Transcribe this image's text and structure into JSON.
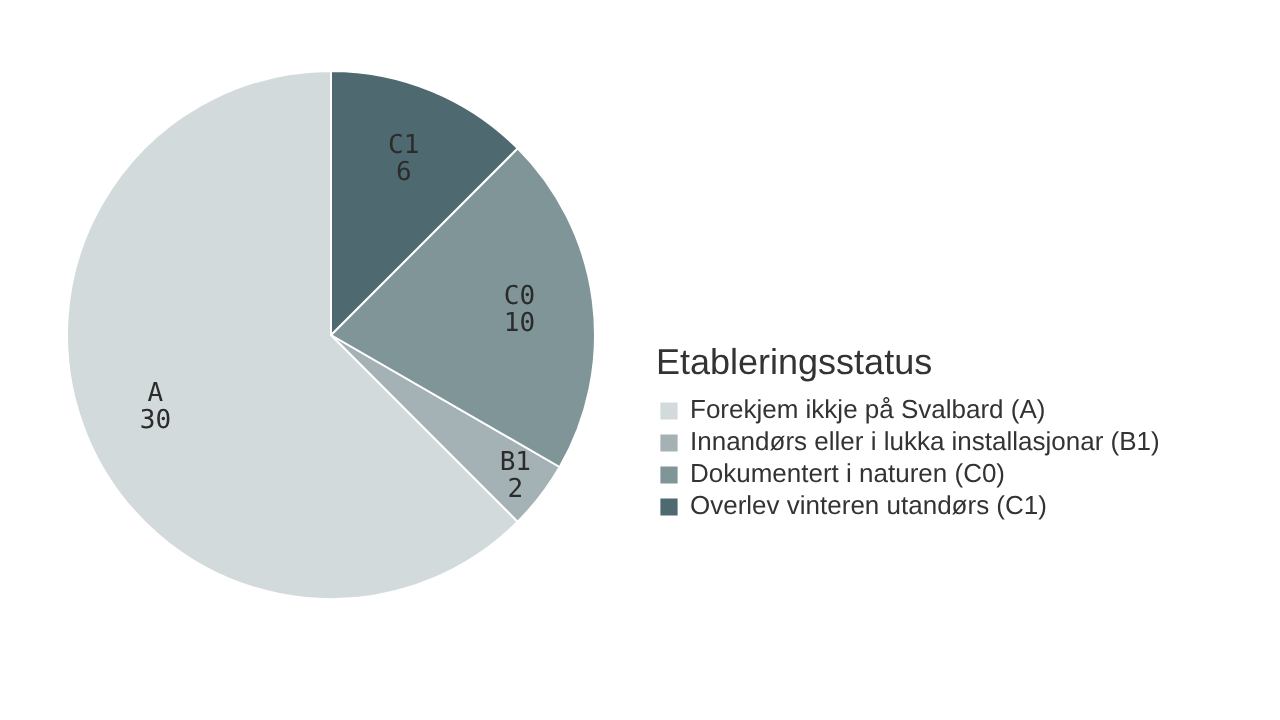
{
  "chart_data": {
    "type": "pie",
    "legend_title": "Etableringsstatus",
    "legend": "right",
    "categories": [
      "Forekjem ikkje på Svalbard (A)",
      "Innandørs eller i lukka installasjonar (B1)",
      "Dokumentert i naturen (C0)",
      "Overlev vinteren utandørs (C1)"
    ],
    "values": [
      30,
      2,
      10,
      6
    ],
    "colors": [
      "#d3dadb",
      "#a4b1b5",
      "#7f9598",
      "#4e6a70"
    ],
    "value_labels": [
      "A\n30",
      "B1\n2",
      "C0\n10",
      "C1\n6"
    ]
  }
}
